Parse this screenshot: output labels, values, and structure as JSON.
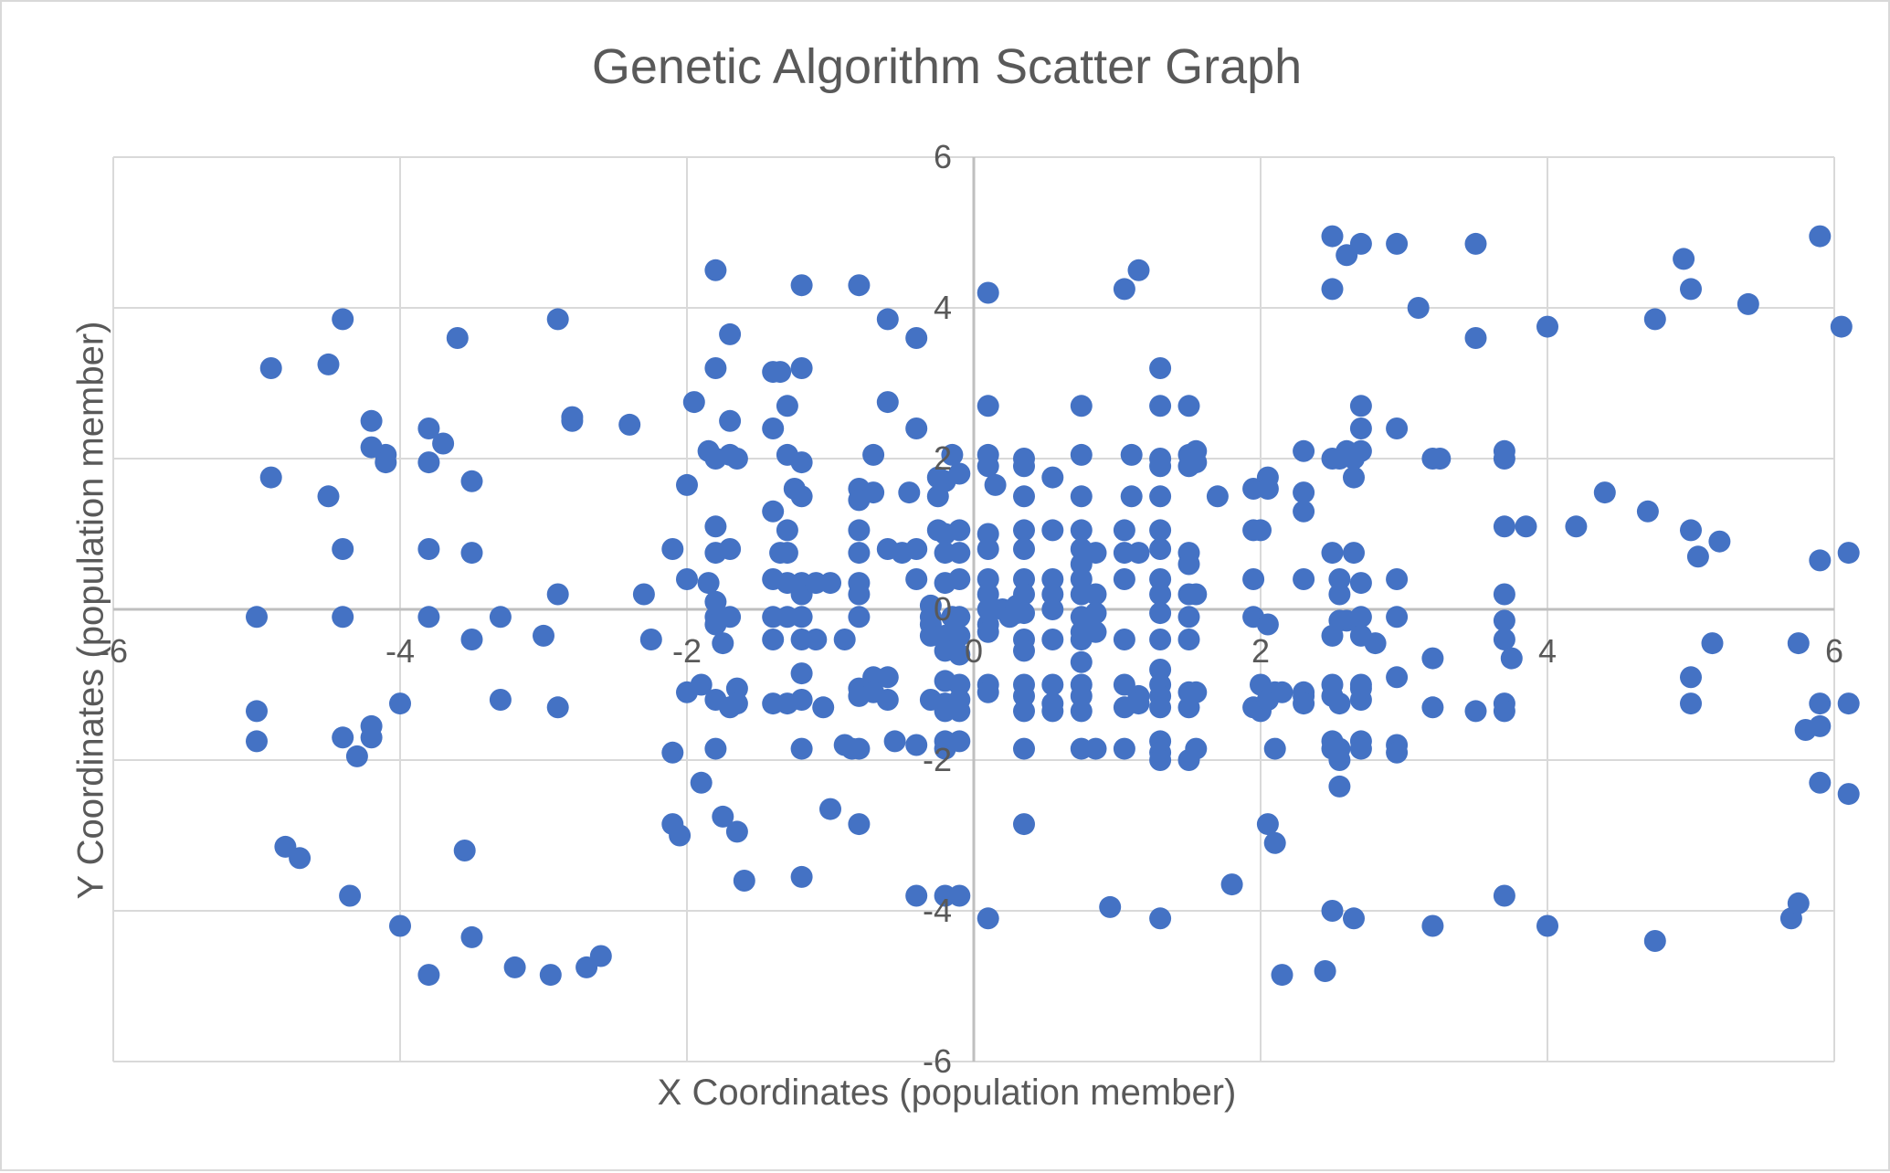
{
  "chart_data": {
    "type": "scatter",
    "title": "Genetic Algorithm Scatter Graph",
    "xlabel": "X Coordinates (population member)",
    "ylabel": "Y Coordinates (population member)",
    "xlim": [
      -6,
      6
    ],
    "ylim": [
      -6,
      6
    ],
    "x_ticks": [
      -6,
      -4,
      -2,
      0,
      2,
      4,
      6
    ],
    "y_ticks": [
      -6,
      -4,
      -2,
      0,
      2,
      4,
      6
    ],
    "grid": true,
    "legend": "none",
    "marker_color": "#4472c4",
    "points": [
      [
        -5.0,
        -0.1
      ],
      [
        -4.9,
        3.2
      ],
      [
        -4.9,
        1.75
      ],
      [
        -5.0,
        -1.35
      ],
      [
        -5.0,
        -1.75
      ],
      [
        -4.8,
        -3.15
      ],
      [
        -4.7,
        -3.3
      ],
      [
        -4.5,
        3.25
      ],
      [
        -4.5,
        1.5
      ],
      [
        -4.4,
        3.85
      ],
      [
        -4.4,
        0.8
      ],
      [
        -4.4,
        -0.1
      ],
      [
        -4.4,
        -1.7
      ],
      [
        -4.3,
        -1.95
      ],
      [
        -4.35,
        -3.8
      ],
      [
        -4.2,
        2.5
      ],
      [
        -4.2,
        2.15
      ],
      [
        -4.1,
        2.05
      ],
      [
        -4.1,
        1.95
      ],
      [
        -4.2,
        -1.55
      ],
      [
        -4.2,
        -1.7
      ],
      [
        -4.0,
        -1.25
      ],
      [
        -4.0,
        -4.2
      ],
      [
        -3.8,
        2.4
      ],
      [
        -3.8,
        1.95
      ],
      [
        -3.8,
        0.8
      ],
      [
        -3.8,
        -0.1
      ],
      [
        -3.7,
        2.2
      ],
      [
        -3.6,
        3.6
      ],
      [
        -3.5,
        1.7
      ],
      [
        -3.5,
        0.75
      ],
      [
        -3.5,
        -0.4
      ],
      [
        -3.55,
        -3.2
      ],
      [
        -3.5,
        -4.35
      ],
      [
        -3.8,
        -4.85
      ],
      [
        -3.3,
        -0.1
      ],
      [
        -3.3,
        -1.2
      ],
      [
        -3.2,
        -4.75
      ],
      [
        -3.0,
        -0.35
      ],
      [
        -2.9,
        3.85
      ],
      [
        -2.9,
        0.2
      ],
      [
        -2.9,
        -1.3
      ],
      [
        -2.95,
        -4.85
      ],
      [
        -2.8,
        2.5
      ],
      [
        -2.8,
        2.55
      ],
      [
        -2.7,
        -4.75
      ],
      [
        -2.6,
        -4.6
      ],
      [
        -2.4,
        2.45
      ],
      [
        -2.3,
        0.2
      ],
      [
        -2.25,
        -0.4
      ],
      [
        -2.1,
        0.8
      ],
      [
        -2.1,
        -1.9
      ],
      [
        -2.1,
        -2.85
      ],
      [
        -2.05,
        -3.0
      ],
      [
        -2.0,
        1.65
      ],
      [
        -2.0,
        0.4
      ],
      [
        -2.0,
        -1.1
      ],
      [
        -1.95,
        2.75
      ],
      [
        -1.9,
        -1.0
      ],
      [
        -1.9,
        -2.3
      ],
      [
        -1.8,
        4.5
      ],
      [
        -1.8,
        3.2
      ],
      [
        -1.85,
        2.1
      ],
      [
        -1.8,
        2.0
      ],
      [
        -1.8,
        1.1
      ],
      [
        -1.8,
        0.75
      ],
      [
        -1.85,
        0.35
      ],
      [
        -1.8,
        0.1
      ],
      [
        -1.8,
        -0.1
      ],
      [
        -1.8,
        -0.2
      ],
      [
        -1.75,
        -0.45
      ],
      [
        -1.8,
        -1.2
      ],
      [
        -1.8,
        -1.85
      ],
      [
        -1.75,
        -2.75
      ],
      [
        -1.7,
        3.65
      ],
      [
        -1.7,
        2.5
      ],
      [
        -1.7,
        2.05
      ],
      [
        -1.7,
        0.8
      ],
      [
        -1.7,
        -0.1
      ],
      [
        -1.7,
        -1.3
      ],
      [
        -1.65,
        2.0
      ],
      [
        -1.65,
        -1.05
      ],
      [
        -1.65,
        -1.25
      ],
      [
        -1.65,
        -2.95
      ],
      [
        -1.6,
        -3.6
      ],
      [
        -1.4,
        3.15
      ],
      [
        -1.35,
        3.15
      ],
      [
        -1.4,
        2.4
      ],
      [
        -1.4,
        1.3
      ],
      [
        -1.35,
        0.75
      ],
      [
        -1.4,
        0.4
      ],
      [
        -1.4,
        -0.1
      ],
      [
        -1.4,
        -0.4
      ],
      [
        -1.4,
        -1.25
      ],
      [
        -1.3,
        2.7
      ],
      [
        -1.3,
        2.05
      ],
      [
        -1.3,
        1.05
      ],
      [
        -1.3,
        0.75
      ],
      [
        -1.3,
        0.35
      ],
      [
        -1.3,
        -0.1
      ],
      [
        -1.3,
        -1.25
      ],
      [
        -1.25,
        1.6
      ],
      [
        -1.2,
        4.3
      ],
      [
        -1.2,
        3.2
      ],
      [
        -1.2,
        1.95
      ],
      [
        -1.2,
        1.5
      ],
      [
        -1.2,
        0.35
      ],
      [
        -1.2,
        0.2
      ],
      [
        -1.2,
        -0.1
      ],
      [
        -1.2,
        -0.4
      ],
      [
        -1.2,
        -0.85
      ],
      [
        -1.2,
        -1.2
      ],
      [
        -1.2,
        -1.85
      ],
      [
        -1.2,
        -3.55
      ],
      [
        -1.1,
        0.35
      ],
      [
        -1.1,
        -0.4
      ],
      [
        -1.05,
        -1.3
      ],
      [
        -1.0,
        -2.65
      ],
      [
        -1.0,
        0.35
      ],
      [
        -0.9,
        -1.8
      ],
      [
        -0.9,
        -0.4
      ],
      [
        -0.85,
        -1.85
      ],
      [
        -0.8,
        4.3
      ],
      [
        -0.8,
        1.6
      ],
      [
        -0.8,
        1.45
      ],
      [
        -0.8,
        1.05
      ],
      [
        -0.8,
        0.75
      ],
      [
        -0.8,
        0.35
      ],
      [
        -0.8,
        0.2
      ],
      [
        -0.8,
        -0.1
      ],
      [
        -0.8,
        -1.05
      ],
      [
        -0.8,
        -1.15
      ],
      [
        -0.8,
        -1.85
      ],
      [
        -0.8,
        -2.85
      ],
      [
        -0.7,
        2.05
      ],
      [
        -0.7,
        1.55
      ],
      [
        -0.7,
        -0.9
      ],
      [
        -0.7,
        -1.1
      ],
      [
        -0.6,
        -0.9
      ],
      [
        -0.6,
        -1.2
      ],
      [
        -0.6,
        3.85
      ],
      [
        -0.6,
        2.75
      ],
      [
        -0.6,
        0.8
      ],
      [
        -0.55,
        -1.75
      ],
      [
        -0.5,
        0.75
      ],
      [
        -0.45,
        1.55
      ],
      [
        -0.4,
        3.6
      ],
      [
        -0.4,
        2.4
      ],
      [
        -0.4,
        0.8
      ],
      [
        -0.4,
        0.4
      ],
      [
        -0.4,
        -1.8
      ],
      [
        -0.3,
        0.05
      ],
      [
        -0.3,
        -0.1
      ],
      [
        -0.3,
        -0.2
      ],
      [
        -0.3,
        -0.35
      ],
      [
        -0.25,
        1.5
      ],
      [
        -0.25,
        1.05
      ],
      [
        -0.2,
        1.7
      ],
      [
        -0.2,
        1.0
      ],
      [
        -0.2,
        0.75
      ],
      [
        -0.2,
        0.35
      ],
      [
        -0.2,
        -0.35
      ],
      [
        -0.2,
        -0.55
      ],
      [
        -0.2,
        -0.95
      ],
      [
        -0.2,
        -1.25
      ],
      [
        -0.2,
        -1.35
      ],
      [
        -0.2,
        -1.75
      ],
      [
        -0.2,
        -1.85
      ],
      [
        -0.2,
        -3.8
      ],
      [
        -0.4,
        -3.8
      ],
      [
        -0.15,
        2.05
      ],
      [
        -0.1,
        1.8
      ],
      [
        -0.1,
        1.05
      ],
      [
        -0.1,
        0.75
      ],
      [
        -0.1,
        0.4
      ],
      [
        -0.1,
        -0.1
      ],
      [
        -0.1,
        -0.35
      ],
      [
        -0.1,
        -0.6
      ],
      [
        -0.1,
        -1.0
      ],
      [
        -0.1,
        -1.2
      ],
      [
        -0.1,
        -1.35
      ],
      [
        -0.1,
        -1.75
      ],
      [
        -0.1,
        -3.8
      ],
      [
        -0.25,
        1.75
      ],
      [
        -0.15,
        -0.1
      ],
      [
        0.1,
        4.2
      ],
      [
        0.1,
        2.7
      ],
      [
        0.1,
        2.05
      ],
      [
        0.1,
        1.9
      ],
      [
        0.15,
        1.65
      ],
      [
        0.1,
        1.0
      ],
      [
        0.1,
        0.8
      ],
      [
        0.1,
        0.4
      ],
      [
        0.1,
        0.2
      ],
      [
        0.1,
        0.0
      ],
      [
        0.1,
        -0.2
      ],
      [
        0.1,
        -0.3
      ],
      [
        0.1,
        -1.0
      ],
      [
        0.1,
        -1.1
      ],
      [
        0.1,
        -4.1
      ],
      [
        0.2,
        0.0
      ],
      [
        0.25,
        -0.1
      ],
      [
        0.3,
        0.05
      ],
      [
        0.3,
        -0.05
      ],
      [
        -0.3,
        -1.2
      ],
      [
        0.35,
        2.0
      ],
      [
        0.35,
        1.9
      ],
      [
        0.35,
        1.5
      ],
      [
        0.35,
        1.05
      ],
      [
        0.35,
        0.8
      ],
      [
        0.35,
        0.4
      ],
      [
        0.35,
        0.2
      ],
      [
        0.35,
        -0.05
      ],
      [
        0.35,
        -0.4
      ],
      [
        0.35,
        -0.55
      ],
      [
        0.35,
        -1.0
      ],
      [
        0.35,
        -1.15
      ],
      [
        0.35,
        -1.35
      ],
      [
        0.35,
        -1.85
      ],
      [
        0.35,
        -2.85
      ],
      [
        0.55,
        1.75
      ],
      [
        0.55,
        1.05
      ],
      [
        0.55,
        0.4
      ],
      [
        0.55,
        0.2
      ],
      [
        0.55,
        0.0
      ],
      [
        0.55,
        -0.4
      ],
      [
        0.55,
        -1.0
      ],
      [
        0.55,
        -1.25
      ],
      [
        0.55,
        -1.35
      ],
      [
        0.75,
        2.7
      ],
      [
        0.75,
        2.05
      ],
      [
        0.75,
        1.5
      ],
      [
        0.75,
        1.05
      ],
      [
        0.75,
        0.8
      ],
      [
        0.75,
        0.6
      ],
      [
        0.75,
        0.4
      ],
      [
        0.75,
        0.2
      ],
      [
        0.75,
        -0.1
      ],
      [
        0.75,
        -0.3
      ],
      [
        0.75,
        -0.4
      ],
      [
        0.75,
        -0.7
      ],
      [
        0.75,
        -1.0
      ],
      [
        0.75,
        -1.15
      ],
      [
        0.75,
        -1.35
      ],
      [
        0.75,
        -1.85
      ],
      [
        0.85,
        0.75
      ],
      [
        0.85,
        0.2
      ],
      [
        0.85,
        -0.05
      ],
      [
        0.85,
        -0.3
      ],
      [
        0.85,
        -1.85
      ],
      [
        0.95,
        -3.95
      ],
      [
        1.05,
        4.25
      ],
      [
        1.1,
        2.05
      ],
      [
        1.1,
        1.5
      ],
      [
        1.15,
        4.5
      ],
      [
        1.05,
        1.05
      ],
      [
        1.05,
        0.75
      ],
      [
        1.05,
        0.4
      ],
      [
        1.05,
        -0.4
      ],
      [
        1.05,
        -1.0
      ],
      [
        1.05,
        -1.3
      ],
      [
        1.05,
        -1.85
      ],
      [
        1.15,
        0.75
      ],
      [
        1.15,
        -1.15
      ],
      [
        1.15,
        -1.25
      ],
      [
        1.3,
        3.2
      ],
      [
        1.3,
        2.7
      ],
      [
        1.3,
        2.0
      ],
      [
        1.3,
        1.9
      ],
      [
        1.3,
        1.5
      ],
      [
        1.3,
        1.05
      ],
      [
        1.3,
        0.8
      ],
      [
        1.3,
        0.4
      ],
      [
        1.3,
        0.2
      ],
      [
        1.3,
        -0.05
      ],
      [
        1.3,
        -0.4
      ],
      [
        1.3,
        -0.8
      ],
      [
        1.3,
        -1.0
      ],
      [
        1.3,
        -1.15
      ],
      [
        1.3,
        -1.3
      ],
      [
        1.3,
        -1.75
      ],
      [
        1.3,
        -1.9
      ],
      [
        1.3,
        -2.0
      ],
      [
        1.3,
        -4.1
      ],
      [
        1.5,
        2.7
      ],
      [
        1.5,
        2.05
      ],
      [
        1.5,
        1.9
      ],
      [
        1.5,
        0.75
      ],
      [
        1.5,
        0.6
      ],
      [
        1.5,
        0.2
      ],
      [
        1.5,
        -0.1
      ],
      [
        1.5,
        -0.4
      ],
      [
        1.5,
        -1.1
      ],
      [
        1.5,
        -1.3
      ],
      [
        1.5,
        -2.0
      ],
      [
        1.55,
        2.1
      ],
      [
        1.55,
        1.95
      ],
      [
        1.55,
        0.2
      ],
      [
        1.55,
        -1.1
      ],
      [
        1.55,
        -1.85
      ],
      [
        1.7,
        1.5
      ],
      [
        1.8,
        -3.65
      ],
      [
        1.95,
        1.6
      ],
      [
        1.95,
        1.05
      ],
      [
        1.95,
        0.4
      ],
      [
        1.95,
        -0.1
      ],
      [
        1.95,
        -1.3
      ],
      [
        2.0,
        1.05
      ],
      [
        2.0,
        -1.0
      ],
      [
        2.0,
        -1.35
      ],
      [
        2.05,
        1.75
      ],
      [
        2.05,
        1.6
      ],
      [
        2.05,
        -0.2
      ],
      [
        2.05,
        -1.2
      ],
      [
        2.05,
        -2.85
      ],
      [
        2.1,
        -1.1
      ],
      [
        2.1,
        -3.1
      ],
      [
        2.1,
        -1.85
      ],
      [
        2.15,
        -1.1
      ],
      [
        2.15,
        -4.85
      ],
      [
        2.3,
        2.1
      ],
      [
        2.3,
        1.55
      ],
      [
        2.3,
        1.3
      ],
      [
        2.3,
        0.4
      ],
      [
        2.3,
        -1.1
      ],
      [
        2.3,
        -1.15
      ],
      [
        2.3,
        -1.25
      ],
      [
        2.45,
        -4.8
      ],
      [
        2.5,
        4.95
      ],
      [
        2.5,
        4.25
      ],
      [
        2.5,
        2.0
      ],
      [
        2.5,
        0.75
      ],
      [
        2.5,
        -0.35
      ],
      [
        2.5,
        -1.0
      ],
      [
        2.5,
        -1.15
      ],
      [
        2.5,
        -1.75
      ],
      [
        2.5,
        -1.85
      ],
      [
        2.5,
        -4.0
      ],
      [
        2.55,
        2.0
      ],
      [
        2.55,
        0.4
      ],
      [
        2.55,
        0.2
      ],
      [
        2.55,
        -0.15
      ],
      [
        2.55,
        -1.25
      ],
      [
        2.55,
        -1.85
      ],
      [
        2.55,
        -2.0
      ],
      [
        2.55,
        -2.35
      ],
      [
        2.6,
        4.7
      ],
      [
        2.6,
        2.1
      ],
      [
        2.6,
        -0.15
      ],
      [
        2.65,
        2.0
      ],
      [
        2.65,
        1.75
      ],
      [
        2.65,
        0.75
      ],
      [
        2.65,
        -4.1
      ],
      [
        2.7,
        4.85
      ],
      [
        2.7,
        2.7
      ],
      [
        2.7,
        2.4
      ],
      [
        2.7,
        2.1
      ],
      [
        2.7,
        0.35
      ],
      [
        2.7,
        -0.1
      ],
      [
        2.7,
        -0.35
      ],
      [
        2.7,
        -1.0
      ],
      [
        2.7,
        -1.2
      ],
      [
        2.7,
        -1.75
      ],
      [
        2.7,
        -1.85
      ],
      [
        2.7,
        -1.05
      ],
      [
        2.8,
        -0.45
      ],
      [
        2.95,
        4.85
      ],
      [
        2.95,
        2.4
      ],
      [
        2.95,
        0.4
      ],
      [
        2.95,
        -0.1
      ],
      [
        2.95,
        -0.9
      ],
      [
        2.95,
        -1.8
      ],
      [
        2.95,
        -1.9
      ],
      [
        3.1,
        4.0
      ],
      [
        3.2,
        -0.65
      ],
      [
        3.2,
        -1.3
      ],
      [
        3.2,
        -4.2
      ],
      [
        3.2,
        2.0
      ],
      [
        3.25,
        2.0
      ],
      [
        3.5,
        4.85
      ],
      [
        3.5,
        3.6
      ],
      [
        3.5,
        -1.35
      ],
      [
        3.7,
        2.1
      ],
      [
        3.7,
        2.0
      ],
      [
        3.7,
        1.1
      ],
      [
        3.7,
        0.2
      ],
      [
        3.7,
        -0.15
      ],
      [
        3.7,
        -0.4
      ],
      [
        3.7,
        -1.25
      ],
      [
        3.7,
        -1.35
      ],
      [
        3.7,
        -3.8
      ],
      [
        3.75,
        -0.65
      ],
      [
        3.85,
        1.1
      ],
      [
        4.0,
        3.75
      ],
      [
        4.0,
        -4.2
      ],
      [
        4.2,
        1.1
      ],
      [
        4.4,
        1.55
      ],
      [
        4.7,
        1.3
      ],
      [
        4.75,
        3.85
      ],
      [
        4.75,
        -4.4
      ],
      [
        4.95,
        4.65
      ],
      [
        5.0,
        4.25
      ],
      [
        5.0,
        1.05
      ],
      [
        5.0,
        -0.9
      ],
      [
        5.0,
        -1.25
      ],
      [
        5.05,
        0.7
      ],
      [
        5.15,
        -0.45
      ],
      [
        5.2,
        0.9
      ],
      [
        5.4,
        4.05
      ],
      [
        5.75,
        -0.45
      ],
      [
        5.7,
        -4.1
      ],
      [
        5.75,
        -3.9
      ],
      [
        5.8,
        -1.6
      ],
      [
        5.9,
        -1.25
      ],
      [
        5.9,
        -1.55
      ],
      [
        5.9,
        -2.3
      ],
      [
        5.9,
        0.65
      ],
      [
        5.9,
        4.95
      ],
      [
        6.05,
        3.75
      ],
      [
        6.1,
        0.75
      ],
      [
        6.1,
        -1.25
      ],
      [
        6.1,
        -2.45
      ]
    ]
  }
}
